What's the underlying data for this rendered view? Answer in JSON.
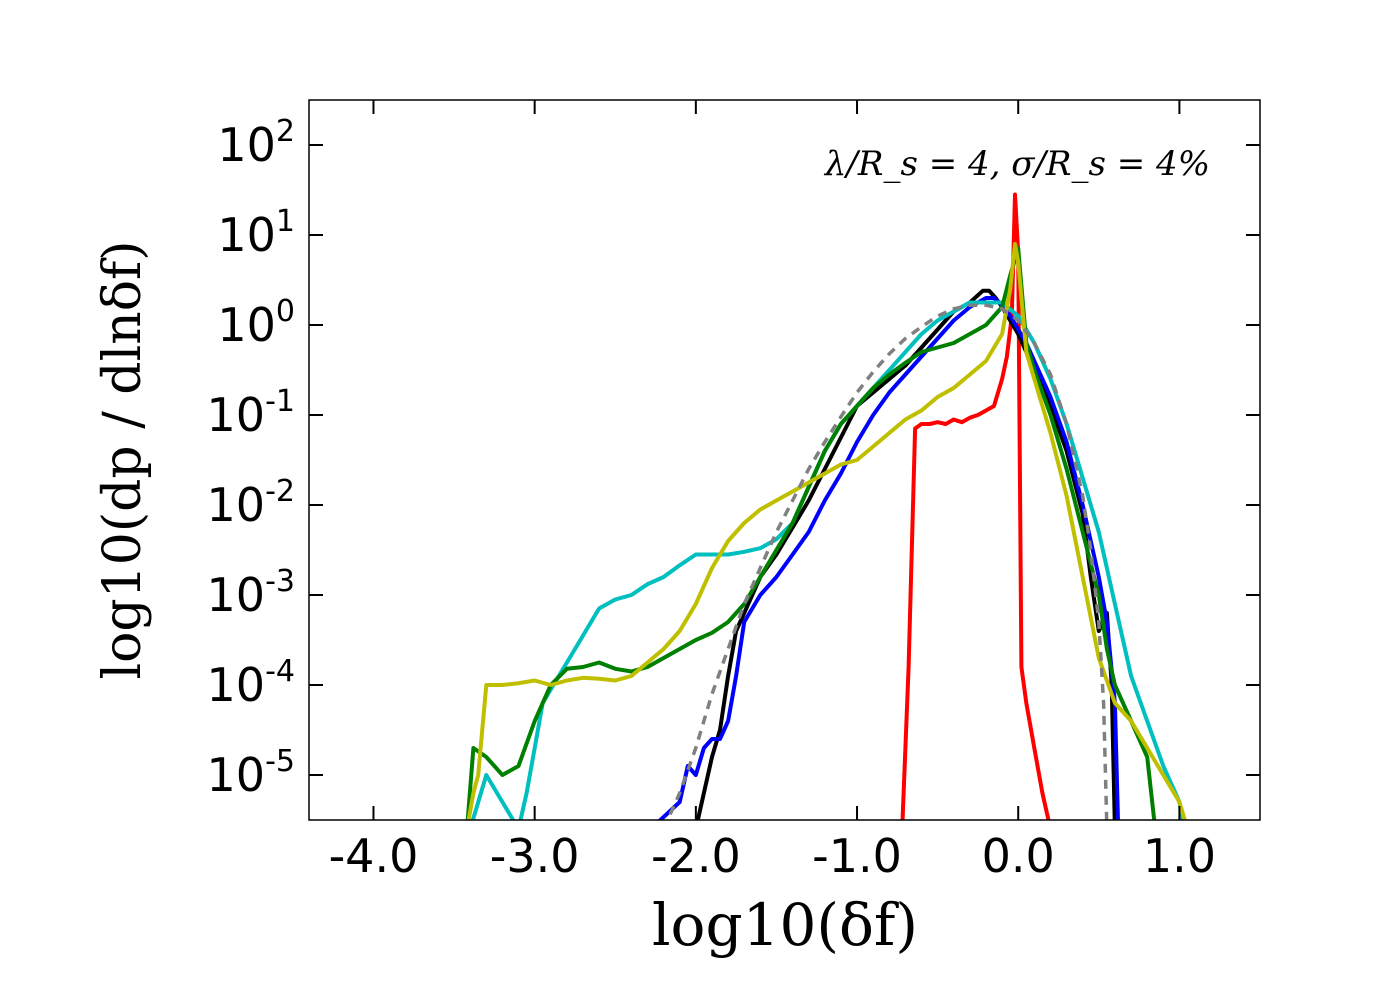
{
  "chart_data": {
    "type": "line",
    "title": "",
    "annotation": "λ/R_s = 4, σ/R_s = 4%",
    "xlabel": "log10(δf)",
    "ylabel": "log10(dp / dlnδf)",
    "xlim": [
      -4.4,
      1.5
    ],
    "ylim": [
      -5.5,
      2.5
    ],
    "y_scale_note": "values are log10 of density",
    "x_ticks": [
      -4.0,
      -3.0,
      -2.0,
      -1.0,
      0.0,
      1.0
    ],
    "x_tick_labels": [
      "-4.0",
      "-3.0",
      "-2.0",
      "-1.0",
      "0.0",
      "1.0"
    ],
    "y_ticks": [
      {
        "base": "10",
        "exp": "2",
        "value": 2
      },
      {
        "base": "10",
        "exp": "1",
        "value": 1
      },
      {
        "base": "10",
        "exp": "0",
        "value": 0
      },
      {
        "base": "10",
        "exp": "-1",
        "value": -1
      },
      {
        "base": "10",
        "exp": "-2",
        "value": -2
      },
      {
        "base": "10",
        "exp": "-3",
        "value": -3
      },
      {
        "base": "10",
        "exp": "-4",
        "value": -4
      },
      {
        "base": "10",
        "exp": "-5",
        "value": -5
      }
    ],
    "grid": false,
    "series": [
      {
        "color": "#ff0000",
        "style": "solid",
        "x": [
          -0.72,
          -0.68,
          -0.64,
          -0.6,
          -0.55,
          -0.5,
          -0.45,
          -0.4,
          -0.35,
          -0.3,
          -0.25,
          -0.2,
          -0.15,
          -0.1,
          -0.07,
          -0.04,
          -0.02,
          0.0,
          0.02,
          0.05,
          0.1,
          0.15,
          0.2
        ],
        "y": [
          -5.6,
          -3.8,
          -1.15,
          -1.1,
          -1.1,
          -1.08,
          -1.1,
          -1.05,
          -1.08,
          -1.03,
          -1.0,
          -0.95,
          -0.9,
          -0.6,
          -0.35,
          0.1,
          1.45,
          0.8,
          -3.8,
          -4.2,
          -4.7,
          -5.2,
          -5.6
        ]
      },
      {
        "color": "#000000",
        "style": "solid",
        "x": [
          -2.0,
          -1.95,
          -1.9,
          -1.85,
          -1.8,
          -1.75,
          -1.7,
          -1.6,
          -1.5,
          -1.4,
          -1.3,
          -1.2,
          -1.1,
          -1.0,
          -0.9,
          -0.8,
          -0.7,
          -0.6,
          -0.5,
          -0.4,
          -0.3,
          -0.22,
          -0.18,
          -0.14,
          -0.1,
          -0.05,
          0.0,
          0.05,
          0.1,
          0.2,
          0.3,
          0.4,
          0.45,
          0.5,
          0.55,
          0.58,
          0.6
        ],
        "y": [
          -5.6,
          -5.2,
          -4.8,
          -4.5,
          -3.9,
          -3.4,
          -3.2,
          -2.8,
          -2.55,
          -2.25,
          -1.95,
          -1.6,
          -1.25,
          -0.9,
          -0.75,
          -0.6,
          -0.45,
          -0.25,
          -0.05,
          0.15,
          0.25,
          0.38,
          0.38,
          0.3,
          0.2,
          0.05,
          -0.1,
          -0.3,
          -0.5,
          -0.9,
          -1.4,
          -2.1,
          -2.8,
          -3.4,
          -3.2,
          -4.0,
          -5.6
        ]
      },
      {
        "color": "#0000ff",
        "style": "solid",
        "x": [
          -2.65,
          -2.55,
          -2.45,
          -2.35,
          -2.25,
          -2.1,
          -2.05,
          -2.0,
          -1.95,
          -1.9,
          -1.85,
          -1.8,
          -1.75,
          -1.7,
          -1.6,
          -1.5,
          -1.4,
          -1.3,
          -1.2,
          -1.1,
          -1.0,
          -0.9,
          -0.8,
          -0.7,
          -0.6,
          -0.5,
          -0.4,
          -0.3,
          -0.25,
          -0.2,
          -0.15,
          -0.1,
          -0.05,
          0.0,
          0.05,
          0.1,
          0.2,
          0.3,
          0.4,
          0.5,
          0.55,
          0.6,
          0.62
        ],
        "y": [
          -5.55,
          -5.55,
          -5.55,
          -5.55,
          -5.55,
          -5.3,
          -4.9,
          -5.0,
          -4.7,
          -4.6,
          -4.6,
          -4.4,
          -3.9,
          -3.3,
          -3.0,
          -2.8,
          -2.55,
          -2.3,
          -1.95,
          -1.65,
          -1.3,
          -1.0,
          -0.75,
          -0.55,
          -0.35,
          -0.15,
          0.05,
          0.2,
          0.25,
          0.3,
          0.3,
          0.22,
          0.1,
          -0.05,
          -0.2,
          -0.4,
          -0.8,
          -1.3,
          -2.0,
          -2.8,
          -3.3,
          -4.2,
          -5.6
        ]
      },
      {
        "color": "#00bfbf",
        "style": "solid",
        "x": [
          -3.4,
          -3.3,
          -3.2,
          -3.1,
          -3.05,
          -3.0,
          -2.95,
          -2.85,
          -2.75,
          -2.6,
          -2.5,
          -2.4,
          -2.3,
          -2.2,
          -2.1,
          -2.0,
          -1.9,
          -1.8,
          -1.7,
          -1.6,
          -1.5,
          -1.4,
          -1.3,
          -1.2,
          -1.1,
          -1.0,
          -0.9,
          -0.8,
          -0.7,
          -0.6,
          -0.5,
          -0.4,
          -0.3,
          -0.2,
          -0.1,
          0.0,
          0.1,
          0.2,
          0.3,
          0.4,
          0.5,
          0.6,
          0.7,
          0.8,
          0.9,
          1.0,
          1.03
        ],
        "y": [
          -5.6,
          -5.0,
          -5.3,
          -5.6,
          -5.2,
          -4.7,
          -4.2,
          -3.9,
          -3.6,
          -3.15,
          -3.05,
          -3.0,
          -2.88,
          -2.8,
          -2.67,
          -2.55,
          -2.55,
          -2.55,
          -2.52,
          -2.48,
          -2.38,
          -2.2,
          -1.8,
          -1.4,
          -1.1,
          -0.9,
          -0.7,
          -0.5,
          -0.3,
          -0.1,
          0.05,
          0.15,
          0.25,
          0.25,
          0.25,
          0.1,
          -0.2,
          -0.6,
          -1.1,
          -1.7,
          -2.3,
          -3.1,
          -3.9,
          -4.4,
          -4.9,
          -5.3,
          -5.6
        ]
      },
      {
        "color": "#008000",
        "style": "solid",
        "x": [
          -3.42,
          -3.38,
          -3.3,
          -3.2,
          -3.1,
          -3.0,
          -2.9,
          -2.8,
          -2.7,
          -2.6,
          -2.5,
          -2.4,
          -2.3,
          -2.2,
          -2.1,
          -2.0,
          -1.9,
          -1.8,
          -1.7,
          -1.6,
          -1.5,
          -1.4,
          -1.3,
          -1.2,
          -1.1,
          -1.0,
          -0.9,
          -0.8,
          -0.7,
          -0.6,
          -0.5,
          -0.4,
          -0.3,
          -0.2,
          -0.1,
          -0.05,
          0.0,
          0.05,
          0.1,
          0.2,
          0.3,
          0.4,
          0.5,
          0.55,
          0.6,
          0.7,
          0.8,
          0.85
        ],
        "y": [
          -5.6,
          -4.7,
          -4.8,
          -5.0,
          -4.9,
          -4.4,
          -4.0,
          -3.82,
          -3.8,
          -3.75,
          -3.82,
          -3.85,
          -3.8,
          -3.7,
          -3.6,
          -3.5,
          -3.42,
          -3.3,
          -3.1,
          -2.8,
          -2.5,
          -2.2,
          -1.8,
          -1.4,
          -1.1,
          -0.9,
          -0.7,
          -0.55,
          -0.42,
          -0.3,
          -0.25,
          -0.2,
          -0.1,
          0.0,
          0.2,
          0.55,
          0.85,
          -0.2,
          -0.5,
          -1.0,
          -1.6,
          -2.3,
          -3.0,
          -3.6,
          -4.0,
          -4.4,
          -4.8,
          -5.6
        ]
      },
      {
        "color": "#bfbf00",
        "style": "solid",
        "x": [
          -3.42,
          -3.38,
          -3.35,
          -3.3,
          -3.2,
          -3.1,
          -3.0,
          -2.9,
          -2.8,
          -2.7,
          -2.6,
          -2.5,
          -2.4,
          -2.3,
          -2.2,
          -2.1,
          -2.0,
          -1.9,
          -1.8,
          -1.7,
          -1.6,
          -1.5,
          -1.4,
          -1.3,
          -1.2,
          -1.1,
          -1.0,
          -0.9,
          -0.8,
          -0.7,
          -0.6,
          -0.5,
          -0.4,
          -0.3,
          -0.2,
          -0.1,
          -0.05,
          -0.02,
          0.0,
          0.05,
          0.1,
          0.2,
          0.3,
          0.4,
          0.5,
          0.6,
          0.7,
          0.8,
          0.9,
          1.0,
          1.05
        ],
        "y": [
          -5.6,
          -5.2,
          -5.0,
          -4.0,
          -4.0,
          -3.98,
          -3.95,
          -4.0,
          -3.95,
          -3.92,
          -3.93,
          -3.95,
          -3.9,
          -3.75,
          -3.6,
          -3.4,
          -3.1,
          -2.7,
          -2.4,
          -2.2,
          -2.05,
          -1.95,
          -1.85,
          -1.75,
          -1.65,
          -1.55,
          -1.5,
          -1.35,
          -1.2,
          -1.05,
          -0.95,
          -0.8,
          -0.7,
          -0.55,
          -0.4,
          -0.1,
          0.4,
          0.9,
          0.7,
          -0.3,
          -0.6,
          -1.2,
          -1.9,
          -2.8,
          -3.7,
          -4.2,
          -4.4,
          -4.7,
          -5.0,
          -5.3,
          -5.6
        ]
      },
      {
        "color": "#808080",
        "style": "dashed",
        "x": [
          -2.2,
          -2.1,
          -2.0,
          -1.9,
          -1.8,
          -1.7,
          -1.6,
          -1.5,
          -1.4,
          -1.3,
          -1.2,
          -1.1,
          -1.0,
          -0.9,
          -0.8,
          -0.7,
          -0.6,
          -0.5,
          -0.4,
          -0.3,
          -0.2,
          -0.1,
          0.0,
          0.1,
          0.2,
          0.3,
          0.4,
          0.45,
          0.5,
          0.53,
          0.55
        ],
        "y": [
          -5.6,
          -5.2,
          -4.7,
          -4.1,
          -3.6,
          -3.1,
          -2.7,
          -2.3,
          -1.95,
          -1.6,
          -1.3,
          -1.02,
          -0.75,
          -0.52,
          -0.32,
          -0.15,
          -0.02,
          0.1,
          0.18,
          0.22,
          0.22,
          0.18,
          0.05,
          -0.2,
          -0.55,
          -1.1,
          -1.9,
          -2.5,
          -3.3,
          -4.2,
          -5.6
        ]
      }
    ]
  }
}
